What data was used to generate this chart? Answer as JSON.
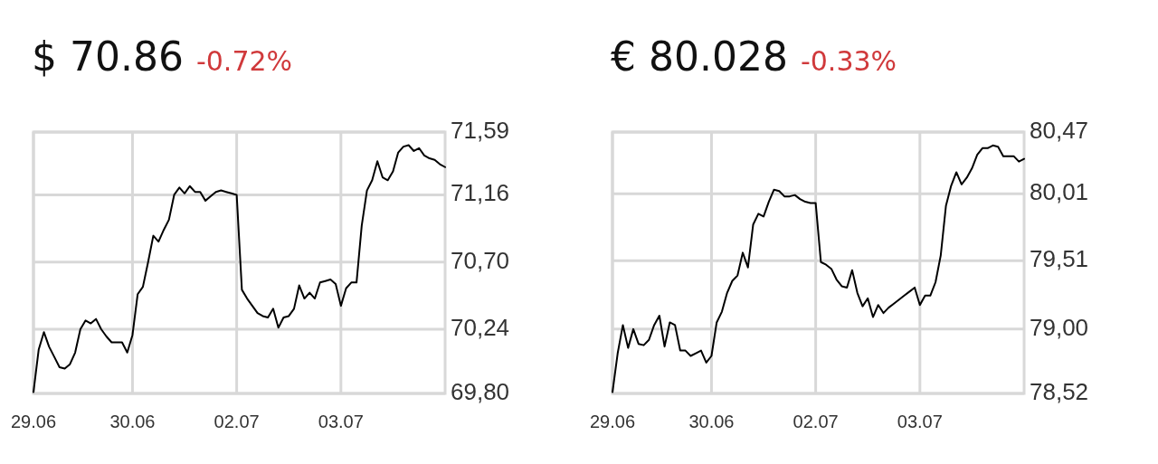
{
  "chart_data": [
    {
      "type": "line",
      "title": "$ 70.86",
      "subtitle": "-0.72%",
      "grid": true,
      "categories": [
        "29.06",
        null,
        null,
        null,
        null,
        null,
        null,
        null,
        null,
        null,
        null,
        null,
        null,
        null,
        null,
        null,
        null,
        null,
        null,
        "30.06",
        null,
        null,
        null,
        null,
        null,
        null,
        null,
        null,
        null,
        null,
        null,
        null,
        null,
        null,
        null,
        null,
        null,
        null,
        null,
        "02.07",
        null,
        null,
        null,
        null,
        null,
        null,
        null,
        null,
        null,
        null,
        null,
        null,
        null,
        null,
        null,
        null,
        null,
        null,
        null,
        "03.07",
        null,
        null,
        null,
        null,
        null,
        null,
        null,
        null,
        null,
        null,
        null,
        null,
        null,
        null,
        null,
        null,
        null,
        null,
        null,
        null
      ],
      "ylim": [
        69.8,
        71.59
      ],
      "yticks": [
        {
          "value": 69.8,
          "label": "69,80"
        },
        {
          "value": 70.24,
          "label": "70,24"
        },
        {
          "value": 70.7,
          "label": "70,70"
        },
        {
          "value": 71.16,
          "label": "71,16"
        },
        {
          "value": 71.59,
          "label": "71,59"
        }
      ],
      "series": [
        {
          "color": "#000000",
          "values": [
            69.81,
            70.1,
            70.22,
            70.12,
            70.05,
            69.98,
            69.97,
            70.0,
            70.08,
            70.24,
            70.3,
            70.28,
            70.31,
            70.24,
            70.19,
            70.15,
            70.15,
            70.15,
            70.08,
            70.2,
            70.48,
            70.53,
            70.7,
            70.88,
            70.84,
            70.92,
            70.99,
            71.16,
            71.21,
            71.17,
            71.22,
            71.18,
            71.18,
            71.12,
            71.15,
            71.18,
            71.19,
            71.18,
            71.17,
            71.16,
            70.51,
            70.45,
            70.4,
            70.35,
            70.33,
            70.32,
            70.38,
            70.25,
            70.32,
            70.33,
            70.38,
            70.54,
            70.45,
            70.49,
            70.45,
            70.56,
            70.57,
            70.58,
            70.55,
            70.4,
            70.52,
            70.56,
            70.56,
            70.95,
            71.19,
            71.26,
            71.39,
            71.28,
            71.26,
            71.32,
            71.45,
            71.49,
            71.5,
            71.46,
            71.48,
            71.43,
            71.41,
            71.4,
            71.37,
            71.35
          ]
        }
      ]
    },
    {
      "type": "line",
      "title": "€ 80.028",
      "subtitle": "-0.33%",
      "grid": true,
      "categories": [
        "29.06",
        null,
        null,
        null,
        null,
        null,
        null,
        null,
        null,
        null,
        null,
        null,
        null,
        null,
        null,
        null,
        null,
        null,
        null,
        "30.06",
        null,
        null,
        null,
        null,
        null,
        null,
        null,
        null,
        null,
        null,
        null,
        null,
        null,
        null,
        null,
        null,
        null,
        null,
        null,
        "02.07",
        null,
        null,
        null,
        null,
        null,
        null,
        null,
        null,
        null,
        null,
        null,
        null,
        null,
        null,
        null,
        null,
        null,
        null,
        null,
        "03.07",
        null,
        null,
        null,
        null,
        null,
        null,
        null,
        null,
        null,
        null,
        null,
        null,
        null,
        null,
        null,
        null,
        null,
        null,
        null,
        null
      ],
      "ylim": [
        78.52,
        80.47
      ],
      "yticks": [
        {
          "value": 78.52,
          "label": "78,52"
        },
        {
          "value": 79.0,
          "label": "79,00"
        },
        {
          "value": 79.51,
          "label": "79,51"
        },
        {
          "value": 80.01,
          "label": "80,01"
        },
        {
          "value": 80.47,
          "label": "80,47"
        }
      ],
      "series": [
        {
          "color": "#000000",
          "values": [
            78.53,
            78.82,
            79.03,
            78.86,
            79.0,
            78.89,
            78.88,
            78.92,
            79.03,
            79.1,
            78.87,
            79.05,
            79.03,
            78.84,
            78.84,
            78.8,
            78.82,
            78.84,
            78.75,
            78.8,
            79.05,
            79.13,
            79.27,
            79.36,
            79.4,
            79.57,
            79.46,
            79.78,
            79.86,
            79.84,
            79.95,
            80.04,
            80.03,
            79.99,
            79.99,
            80.0,
            79.97,
            79.95,
            79.94,
            79.94,
            79.5,
            79.48,
            79.45,
            79.37,
            79.32,
            79.31,
            79.44,
            79.27,
            79.17,
            79.23,
            79.09,
            79.18,
            79.12,
            79.16,
            79.19,
            79.22,
            79.25,
            79.28,
            79.31,
            79.18,
            79.25,
            79.25,
            79.35,
            79.55,
            79.92,
            80.07,
            80.17,
            80.08,
            80.13,
            80.2,
            80.3,
            80.35,
            80.35,
            80.37,
            80.36,
            80.29,
            80.29,
            80.29,
            80.25,
            80.27
          ]
        }
      ]
    }
  ]
}
